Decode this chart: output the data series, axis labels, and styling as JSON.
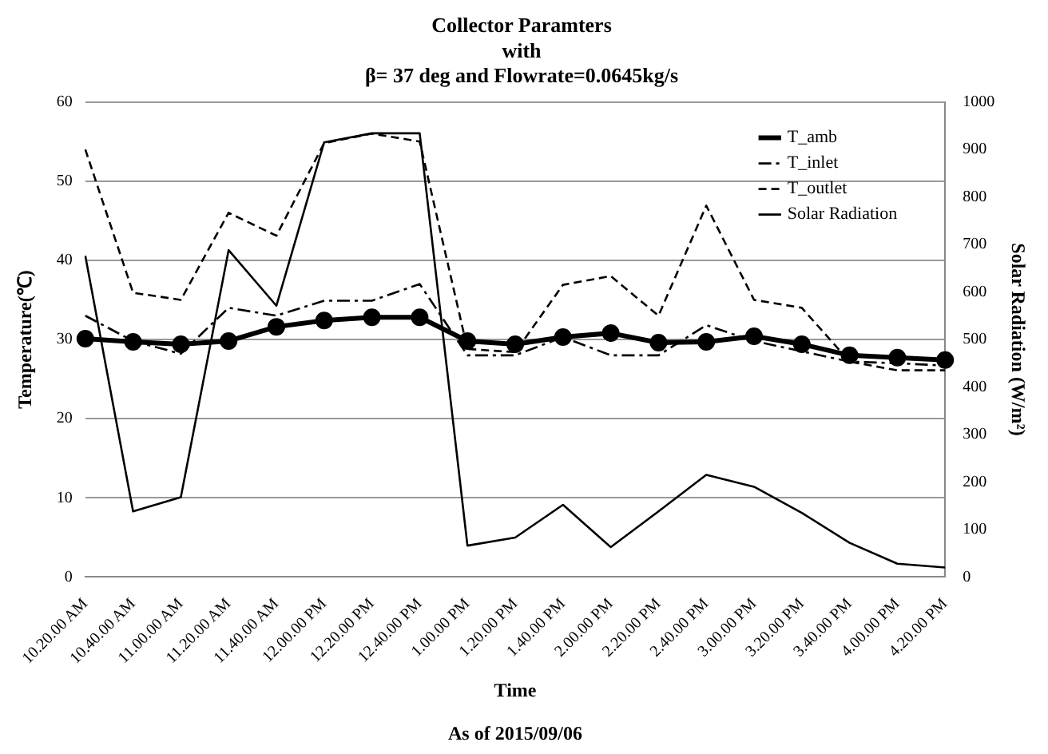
{
  "chart_data": {
    "type": "line",
    "title": "Collector Paramters\nwith\nβ= 37 deg and Flowrate=0.0645kg/s",
    "xlabel": "Time",
    "ylabel": "Temperature(℃)",
    "y2label": "Solar Radiation (W/m²)",
    "annotations": [
      "As of 2015/09/06"
    ],
    "categories": [
      "10.20.00 AM",
      "10.40.00 AM",
      "11.00.00 AM",
      "11.20.00 AM",
      "11.40.00 AM",
      "12.00.00 PM",
      "12.20.00 PM",
      "12.40.00 PM",
      "1.00.00 PM",
      "1.20.00 PM",
      "1.40.00 PM",
      "2.00.00 PM",
      "2.20.00 PM",
      "2.40.00 PM",
      "3.00.00 PM",
      "3.20.00 PM",
      "3.40.00 PM",
      "4.00.00 PM",
      "4.20.00 PM"
    ],
    "series": [
      {
        "name": "T_amb",
        "color": "#000000",
        "marker": "circle",
        "line_style": "solid",
        "values": [
          30.1,
          29.7,
          29.4,
          29.8,
          31.6,
          32.4,
          32.8,
          32.8,
          29.8,
          29.4,
          30.3,
          30.8,
          29.6,
          29.7,
          30.4,
          29.4,
          28.0,
          27.7,
          27.4
        ]
      },
      {
        "name": "T_inlet",
        "color": "#000000",
        "marker": "none",
        "line_style": "dashdot",
        "values": [
          33.0,
          29.8,
          28.2,
          34.0,
          33.0,
          34.9,
          34.9,
          37.0,
          28.0,
          28.0,
          30.3,
          28.0,
          28.0,
          31.8,
          29.8,
          28.5,
          27.2,
          27.0,
          26.7
        ]
      },
      {
        "name": "T_outlet",
        "color": "#000000",
        "marker": "none",
        "line_style": "dashed",
        "values": [
          54.0,
          35.9,
          35.0,
          46.0,
          43.1,
          54.8,
          56.0,
          55.0,
          28.8,
          28.4,
          36.9,
          38.0,
          33.0,
          46.9,
          35.0,
          34.0,
          27.2,
          26.1,
          26.1
        ]
      },
      {
        "name": "Solar Radiation",
        "color": "#000000",
        "marker": "none",
        "line_style": "solid",
        "axis": "y2",
        "values": [
          676,
          138,
          168,
          688,
          571,
          915,
          934,
          934,
          66,
          83,
          152,
          63,
          138,
          215,
          190,
          135,
          72,
          28,
          20
        ]
      }
    ],
    "ylim": [
      0,
      60
    ],
    "yticks": [
      0,
      10,
      20,
      30,
      40,
      50,
      60
    ],
    "y2lim": [
      0,
      1000
    ],
    "y2ticks": [
      0,
      100,
      200,
      300,
      400,
      500,
      600,
      700,
      800,
      900,
      1000
    ],
    "grid": "y",
    "legend": "top right"
  }
}
